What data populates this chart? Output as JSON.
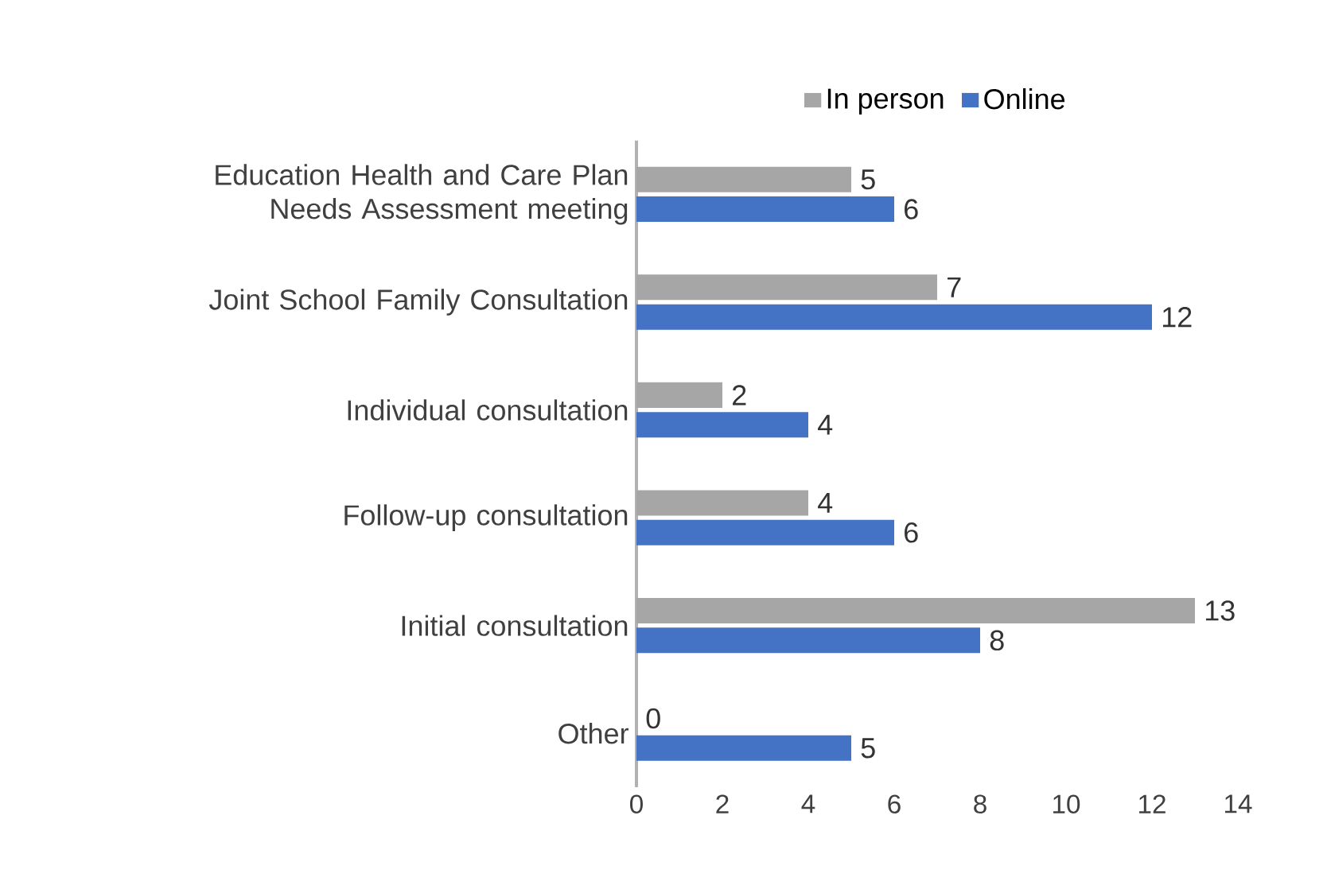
{
  "chart_data": {
    "type": "bar",
    "orientation": "horizontal",
    "categories": [
      "Education Health and Care Plan Needs Assessment meeting",
      "Joint School Family Consultation",
      "Individual consultation",
      "Follow-up consultation",
      "Initial consultation",
      "Other"
    ],
    "series": [
      {
        "name": "In person",
        "color": "#a6a6a6",
        "values": [
          5,
          7,
          2,
          4,
          13,
          0
        ]
      },
      {
        "name": "Online",
        "color": "#4472c4",
        "values": [
          6,
          12,
          4,
          6,
          8,
          5
        ]
      }
    ],
    "xlim": [
      0,
      14
    ],
    "xticks": [
      0,
      2,
      4,
      6,
      8,
      10,
      12,
      14
    ],
    "data_labels": true,
    "legend": "top",
    "grid": false
  }
}
